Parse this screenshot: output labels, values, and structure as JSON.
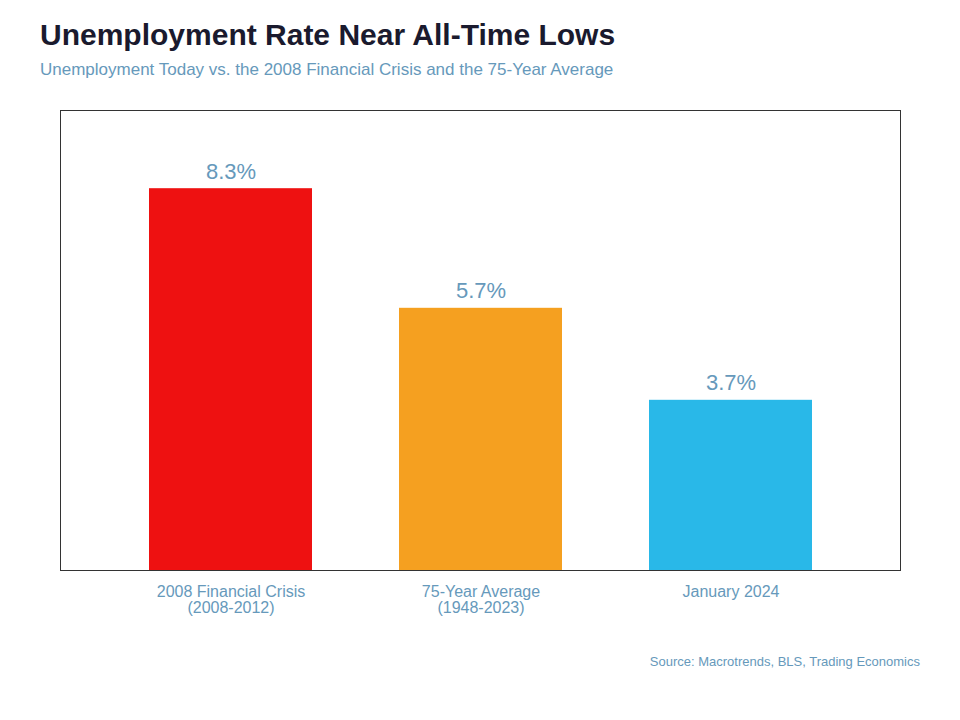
{
  "chart_data": {
    "type": "bar",
    "title": "Unemployment Rate Near All-Time Lows",
    "subtitle": "Unemployment Today vs. the 2008 Financial Crisis and the 75-Year Average",
    "source": "Source: Macrotrends, BLS, Trading Economics",
    "categories": [
      "2008 Financial Crisis\n(2008-2012)",
      "75-Year Average\n(1948-2023)",
      "January 2024"
    ],
    "values": [
      8.3,
      5.7,
      3.7
    ],
    "value_labels": [
      "8.3%",
      "5.7%",
      "3.7%"
    ],
    "colors": [
      "#ee1111",
      "#f5a020",
      "#29b8e8"
    ],
    "ylim": [
      0,
      10
    ],
    "data_labels": true,
    "tick_labels": "x",
    "grid": false
  }
}
